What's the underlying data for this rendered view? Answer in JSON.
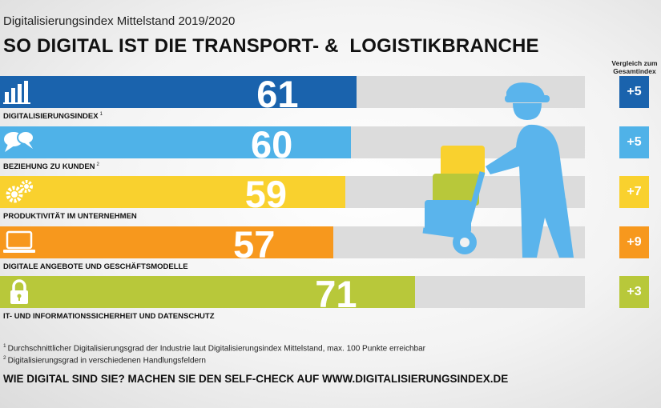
{
  "header": {
    "subtitle": "Digitalisierungsindex Mittelstand 2019/2020",
    "title": "SO DIGITAL IST DIE TRANSPORT- &  LOGISTIKBRANCHE",
    "comparison_header": "Vergleich zum Gesamtindex"
  },
  "chart_data": {
    "type": "bar",
    "orientation": "horizontal",
    "xlim": [
      0,
      100
    ],
    "categories": [
      "DIGITALISIERUNGSINDEX",
      "BEZIEHUNG ZU KUNDEN",
      "PRODUKTIVITÄT IM UNTERNEHMEN",
      "DIGITALE ANGEBOTE UND GESCHÄFTSMODELLE",
      "IT- UND INFORMATIONSSICHERHEIT UND DATENSCHUTZ"
    ],
    "values": [
      61,
      60,
      59,
      57,
      71
    ],
    "comparison": [
      "+5",
      "+5",
      "+7",
      "+9",
      "+3"
    ]
  },
  "rows": [
    {
      "label": "DIGITALISIERUNGSINDEX",
      "sup": "1",
      "value": "61",
      "comparison": "+5",
      "icon": "bar-chart-icon",
      "color": "#1a63ad",
      "cmp_color": "#1a63ad"
    },
    {
      "label": "BEZIEHUNG ZU KUNDEN",
      "sup": "2",
      "value": "60",
      "comparison": "+5",
      "icon": "speech-bubbles-icon",
      "color": "#4fb2e8",
      "cmp_color": "#4fb2e8"
    },
    {
      "label": "PRODUKTIVITÄT IM UNTERNEHMEN",
      "sup": "",
      "value": "59",
      "comparison": "+7",
      "icon": "gears-icon",
      "color": "#f9d12e",
      "cmp_color": "#f9d12e"
    },
    {
      "label": "DIGITALE ANGEBOTE UND GESCHÄFTSMODELLE",
      "sup": "",
      "value": "57",
      "comparison": "+9",
      "icon": "laptop-icon",
      "color": "#f7981d",
      "cmp_color": "#f7981d"
    },
    {
      "label": "IT- UND INFORMATIONSSICHERHEIT UND DATENSCHUTZ",
      "sup": "",
      "value": "71",
      "comparison": "+3",
      "icon": "padlock-icon",
      "color": "#b8c83a",
      "cmp_color": "#b8c83a"
    }
  ],
  "footnotes": [
    {
      "num": "1",
      "text": "Durchschnittlicher Digitalisierungsgrad der Industrie laut Digitalisierungsindex Mittelstand, max. 100 Punkte erreichbar"
    },
    {
      "num": "2",
      "text": "Digitalisierungsgrad in verschiedenen Handlungsfeldern"
    }
  ],
  "cta": "WIE DIGITAL SIND SIE? MACHEN SIE DEN SELF-CHECK AUF WWW.DIGITALISIERUNGSINDEX.DE",
  "illustration": {
    "icon": "delivery-worker-hand-truck-icon",
    "person_color": "#5ab4ec",
    "box_colors": [
      "#f9d12e",
      "#b8c83a",
      "#5ab4ec"
    ]
  }
}
